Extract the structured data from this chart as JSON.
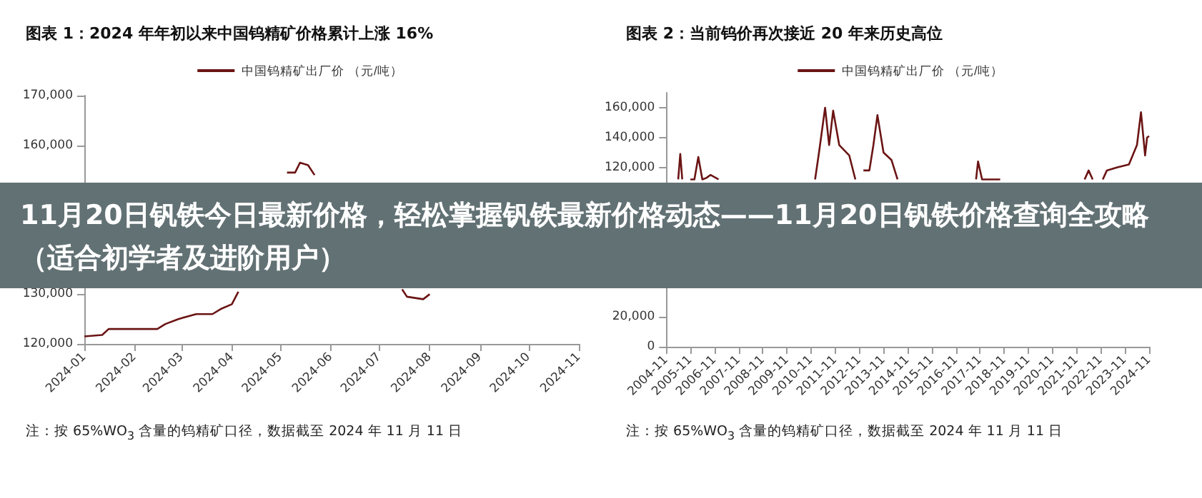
{
  "chart_data": [
    {
      "type": "line",
      "title": "图表 1：2024 年年初以来中国钨精矿价格累计上涨 16%",
      "legend": "top",
      "marker": "none",
      "line_style": "solid",
      "grid": false,
      "x": [
        "2024-01-01",
        "2024-01-12",
        "2024-01-16",
        "2024-02-15",
        "2024-02-20",
        "2024-02-28",
        "2024-03-10",
        "2024-03-20",
        "2024-03-25",
        "2024-04-01",
        "2024-04-05",
        "2024-04-20",
        "2024-05-01",
        "2024-05-05",
        "2024-05-10",
        "2024-05-13",
        "2024-05-18",
        "2024-05-22",
        "2024-05-28",
        "2024-06-05",
        "2024-06-20",
        "2024-07-15",
        "2024-07-18",
        "2024-07-28",
        "2024-08-01"
      ],
      "series": [
        {
          "name": "中国钨精矿出厂价 （元/吨）",
          "color": "#6b1414",
          "values": [
            121500,
            121800,
            123000,
            123000,
            124000,
            125000,
            126000,
            126000,
            127000,
            128000,
            130500,
            null,
            null,
            154500,
            154500,
            156500,
            156000,
            154000,
            null,
            null,
            null,
            131000,
            129500,
            129000,
            130000
          ]
        }
      ],
      "xlim": [
        "2024-01",
        "2024-11"
      ],
      "xticks": [
        "2024-01",
        "2024-02",
        "2024-03",
        "2024-04",
        "2024-05",
        "2024-06",
        "2024-07",
        "2024-08",
        "2024-09",
        "2024-10",
        "2024-11"
      ],
      "ylim": [
        120000,
        170000
      ],
      "yticks": [
        {
          "value": 120000,
          "label": "120,000"
        },
        {
          "value": 130000,
          "label": "130,000"
        },
        {
          "value": 160000,
          "label": "160,000"
        },
        {
          "value": 170000,
          "label": "170,000"
        }
      ],
      "annotations": [
        "注：按 65%WO$_{3}$ 含量的钨精矿口径，数据截至 2024 年 11 月 11 日"
      ]
    },
    {
      "type": "line",
      "title": "图表 2：当前钨价再次接近 20 年来历史高位",
      "legend": "top",
      "marker": "none",
      "line_style": "solid",
      "grid": false,
      "x": [
        "2005-05",
        "2005-06",
        "2005-07",
        "2005-09",
        "2005-11",
        "2006-01",
        "2006-03",
        "2006-05",
        "2006-07",
        "2006-09",
        "2007-01",
        "2007-04",
        "2011-01",
        "2011-03",
        "2011-06",
        "2011-08",
        "2011-10",
        "2012-01",
        "2012-06",
        "2012-09",
        "2012-11",
        "2013-01",
        "2013-04",
        "2013-06",
        "2013-08",
        "2013-11",
        "2014-03",
        "2014-06",
        "2014-09",
        "2017-09",
        "2017-10",
        "2017-12",
        "2018-03",
        "2018-07",
        "2018-09",
        "2018-12",
        "2022-03",
        "2022-05",
        "2022-07",
        "2022-10",
        "2022-12",
        "2023-02",
        "2023-07",
        "2024-01",
        "2024-05",
        "2024-07",
        "2024-09",
        "2024-10",
        "2024-11"
      ],
      "series": [
        {
          "name": "中国钨精矿出厂价 （元/吨）",
          "color": "#6b1414",
          "values": [
            112000,
            129000,
            112000,
            null,
            112000,
            112000,
            127000,
            112000,
            113000,
            115000,
            112000,
            null,
            112000,
            130000,
            160000,
            135000,
            158000,
            135000,
            128000,
            112000,
            null,
            118000,
            118000,
            135000,
            155000,
            130000,
            125000,
            112000,
            null,
            112000,
            124000,
            112000,
            112000,
            112000,
            112000,
            null,
            112000,
            118000,
            112000,
            null,
            112000,
            118000,
            120000,
            122000,
            135000,
            157000,
            128000,
            140000,
            141000
          ]
        }
      ],
      "xlim": [
        "2004-11",
        "2024-11"
      ],
      "xticks": [
        "2004-11",
        "2005-11",
        "2006-11",
        "2007-11",
        "2008-11",
        "2009-11",
        "2010-11",
        "2011-11",
        "2012-11",
        "2013-11",
        "2014-11",
        "2015-11",
        "2016-11",
        "2017-11",
        "2018-11",
        "2019-11",
        "2020-11",
        "2021-11",
        "2022-11",
        "2023-11",
        "2024-11"
      ],
      "ylim": [
        0,
        170000
      ],
      "yticks": [
        {
          "value": 0,
          "label": "0"
        },
        {
          "value": 20000,
          "label": "20,000"
        },
        {
          "value": 120000,
          "label": "120,000"
        },
        {
          "value": 140000,
          "label": "140,000"
        },
        {
          "value": 160000,
          "label": "160,000"
        }
      ],
      "annotations": [
        "注：按 65%WO$_{3}$ 含量的钨精矿口径，数据截至 2024 年 11 月 11 日"
      ]
    },
    {
      "type": "other",
      "title": "11月20日钒铁今日最新价格，轻松掌握钒铁最新价格动态——11月20日钒铁价格查询全攻略（适合初学者及进阶用户）"
    }
  ]
}
